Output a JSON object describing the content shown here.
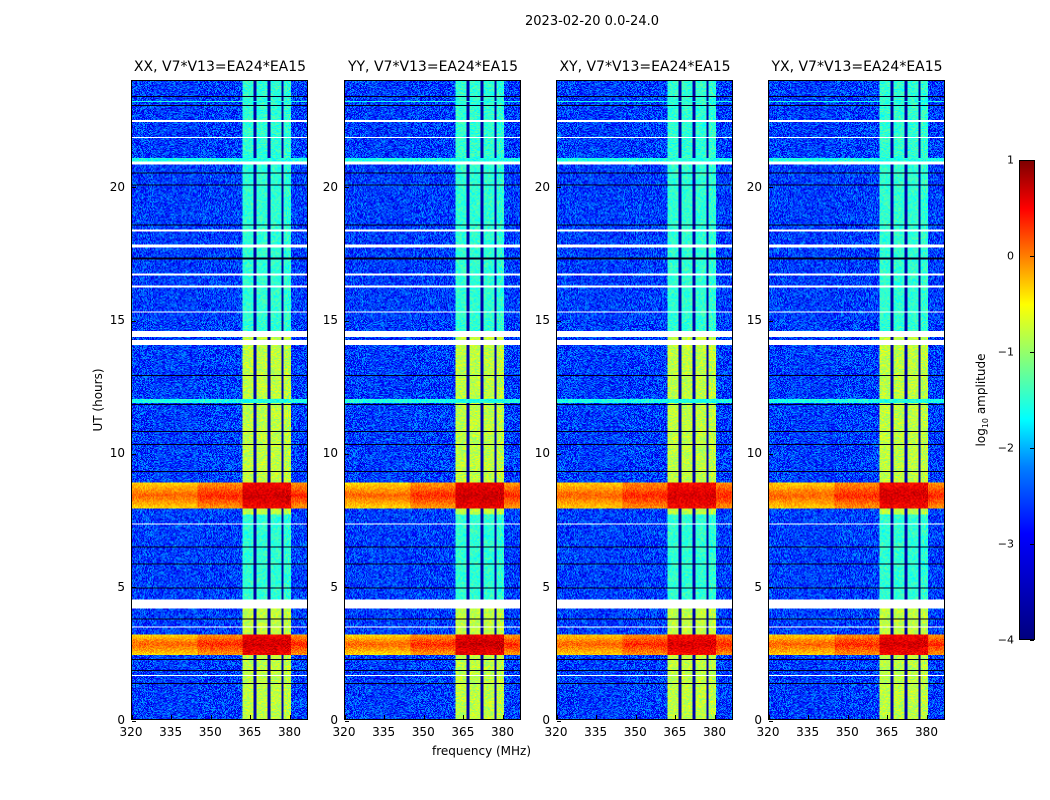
{
  "chart_data": {
    "type": "heatmap",
    "suptitle": "2023-02-20 0.0-24.0",
    "xlabel": "frequency (MHz)",
    "ylabel": "UT (hours)",
    "xlim": [
      320,
      387
    ],
    "ylim": [
      0,
      24
    ],
    "xticks": [
      "320",
      "335",
      "350",
      "365",
      "380"
    ],
    "yticks": [
      "0",
      "5",
      "10",
      "15",
      "20"
    ],
    "panels": [
      {
        "title": "XX, V7*V13=EA24*EA15",
        "rfi_scale": 1.0
      },
      {
        "title": "YY, V7*V13=EA24*EA15",
        "rfi_scale": 1.1
      },
      {
        "title": "XY, V7*V13=EA24*EA15",
        "rfi_scale": 0.9
      },
      {
        "title": "YX, V7*V13=EA24*EA15",
        "rfi_scale": 0.95
      }
    ],
    "colorbar": {
      "label": "log",
      "label_sub": "10",
      "label_rest": " amplitude",
      "vmin": -4,
      "vmax": 1,
      "ticks": [
        "1",
        "0",
        "−1",
        "−2",
        "−3",
        "−4"
      ],
      "colormap": "jet"
    },
    "features": {
      "background_level": -3.1,
      "band_mhz": [
        362.5,
        381
      ],
      "band_level": -1.2,
      "band_level_upper": -1.9,
      "band_gap_channels_mhz": [
        367.2,
        372.4,
        377.6
      ],
      "rfi_bursts_hours": [
        [
          2.4,
          3.2,
          0.1
        ],
        [
          7.9,
          8.9,
          0.0
        ]
      ],
      "flagged_rows_hours": [
        [
          4.15,
          4.5
        ],
        [
          14.05,
          14.25
        ],
        [
          14.35,
          14.6
        ],
        [
          16.25,
          16.3
        ],
        [
          17.75,
          17.85
        ],
        [
          21.85,
          21.9
        ],
        [
          22.45,
          22.55
        ],
        [
          20.85,
          20.95
        ],
        [
          7.3,
          7.35
        ],
        [
          3.45,
          3.5
        ],
        [
          1.6,
          1.65
        ],
        [
          15.3,
          15.35
        ],
        [
          16.7,
          16.75
        ],
        [
          18.35,
          18.4
        ]
      ],
      "dark_rows_hours": [
        [
          1.3,
          1.35
        ],
        [
          1.8,
          1.85
        ],
        [
          2.2,
          2.25
        ],
        [
          3.75,
          3.8
        ],
        [
          4.9,
          4.95
        ],
        [
          5.8,
          5.85
        ],
        [
          6.45,
          6.5
        ],
        [
          9.3,
          9.35
        ],
        [
          10.3,
          10.35
        ],
        [
          10.8,
          10.85
        ],
        [
          11.8,
          11.85
        ],
        [
          12.9,
          12.95
        ],
        [
          17.3,
          17.35
        ],
        [
          18.55,
          18.6
        ],
        [
          20.05,
          20.1
        ],
        [
          20.5,
          20.55
        ],
        [
          23.05,
          23.1
        ],
        [
          23.4,
          23.45
        ]
      ],
      "cyan_rows_hours": [
        [
          11.9,
          12.05
        ],
        [
          20.95,
          21.1
        ],
        [
          23.2,
          23.25
        ]
      ]
    }
  }
}
